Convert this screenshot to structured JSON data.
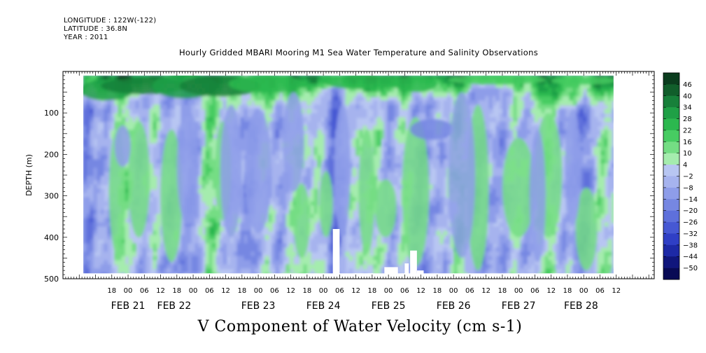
{
  "header": {
    "longitude": "LONGITUDE : 122W(-122)",
    "latitude": "LATITUDE : 36.8N",
    "year": "YEAR : 2011"
  },
  "chart_data": {
    "type": "heatmap",
    "title": "Hourly Gridded MBARI Mooring M1 Sea Water Temperature and Salinity Observations",
    "xlabel": "V Component of Water Velocity (cm s-1)",
    "ylabel": "DEPTH (m)",
    "ylim": [
      500,
      0
    ],
    "y_ticks": [
      100,
      200,
      300,
      400,
      500
    ],
    "x_range": [
      "2011-02-20T12:00",
      "2011-02-28T14:00"
    ],
    "x_hour_ticks": [
      {
        "label": "18",
        "h": 18
      },
      {
        "label": "00",
        "h": 24
      },
      {
        "label": "06",
        "h": 30
      },
      {
        "label": "12",
        "h": 36
      },
      {
        "label": "18",
        "h": 42
      },
      {
        "label": "00",
        "h": 48
      },
      {
        "label": "06",
        "h": 54
      },
      {
        "label": "12",
        "h": 60
      },
      {
        "label": "18",
        "h": 66
      },
      {
        "label": "00",
        "h": 72
      },
      {
        "label": "06",
        "h": 78
      },
      {
        "label": "12",
        "h": 84
      },
      {
        "label": "18",
        "h": 90
      },
      {
        "label": "00",
        "h": 96
      },
      {
        "label": "06",
        "h": 102
      },
      {
        "label": "12",
        "h": 108
      },
      {
        "label": "18",
        "h": 114
      },
      {
        "label": "00",
        "h": 120
      },
      {
        "label": "06",
        "h": 126
      },
      {
        "label": "12",
        "h": 132
      },
      {
        "label": "18",
        "h": 138
      },
      {
        "label": "00",
        "h": 144
      },
      {
        "label": "06",
        "h": 150
      },
      {
        "label": "12",
        "h": 156
      },
      {
        "label": "18",
        "h": 162
      },
      {
        "label": "00",
        "h": 168
      },
      {
        "label": "06",
        "h": 174
      },
      {
        "label": "12",
        "h": 180
      },
      {
        "label": "18",
        "h": 186
      },
      {
        "label": "00",
        "h": 192
      },
      {
        "label": "06",
        "h": 198
      },
      {
        "label": "12",
        "h": 204
      }
    ],
    "x_day_labels": [
      {
        "label": "FEB 21",
        "h": 24
      },
      {
        "label": "FEB 22",
        "h": 41
      },
      {
        "label": "FEB 23",
        "h": 72
      },
      {
        "label": "FEB 24",
        "h": 96
      },
      {
        "label": "FEB 25",
        "h": 120
      },
      {
        "label": "FEB 26",
        "h": 144
      },
      {
        "label": "FEB 27",
        "h": 168
      },
      {
        "label": "FEB 28",
        "h": 191
      }
    ],
    "colorbar": {
      "levels": [
        46,
        40,
        34,
        28,
        22,
        16,
        10,
        4,
        -2,
        -8,
        -14,
        -20,
        -26,
        -32,
        -38,
        -44,
        -50
      ],
      "colors": [
        "#0b3d1e",
        "#115e2b",
        "#17803a",
        "#1fa046",
        "#2cb84f",
        "#47cc62",
        "#74dd84",
        "#a5ecae",
        "#b8c6f2",
        "#a6b3ee",
        "#8e9de9",
        "#7687e2",
        "#5e70db",
        "#4658d3",
        "#2f3fc5",
        "#1d29a6",
        "#10167c",
        "#080a55"
      ]
    },
    "data_extent": {
      "start_h": 7.5,
      "end_h": 203,
      "depth_min": 10,
      "depth_max": 487
    },
    "gaps": [
      {
        "h0": 99.5,
        "h1": 102,
        "d0": 380,
        "d1": 490
      },
      {
        "h0": 118.5,
        "h1": 123.5,
        "d0": 472,
        "d1": 490
      },
      {
        "h0": 126,
        "h1": 127.5,
        "d0": 463,
        "d1": 490
      },
      {
        "h0": 128,
        "h1": 130.5,
        "d0": 432,
        "d1": 490
      },
      {
        "h0": 130.5,
        "h1": 133,
        "d0": 480,
        "d1": 490
      }
    ],
    "regions": [
      {
        "level": 3,
        "h": 16,
        "d": 45,
        "rh": 10,
        "rd": 25
      },
      {
        "level": 2,
        "h": 30,
        "d": 35,
        "rh": 16,
        "rd": 20
      },
      {
        "level": 3,
        "h": 45,
        "d": 35,
        "rh": 12,
        "rd": 30
      },
      {
        "level": 2,
        "h": 58,
        "d": 35,
        "rh": 15,
        "rd": 25
      },
      {
        "level": 4,
        "h": 75,
        "d": 30,
        "rh": 14,
        "rd": 22
      },
      {
        "level": 4,
        "h": 110,
        "d": 25,
        "rh": 14,
        "rd": 18
      },
      {
        "level": 4,
        "h": 130,
        "d": 30,
        "rh": 8,
        "rd": 20
      },
      {
        "level": 5,
        "h": 160,
        "d": 20,
        "rh": 18,
        "rd": 12
      },
      {
        "level": 5,
        "h": 192,
        "d": 22,
        "rh": 12,
        "rd": 10
      },
      {
        "level": 6,
        "h": 20,
        "d": 290,
        "rh": 3,
        "rd": 150
      },
      {
        "level": 6,
        "h": 28,
        "d": 260,
        "rh": 4,
        "rd": 140
      },
      {
        "level": 6,
        "h": 40,
        "d": 300,
        "rh": 4,
        "rd": 160
      },
      {
        "level": 6,
        "h": 88,
        "d": 360,
        "rh": 3,
        "rd": 90
      },
      {
        "level": 6,
        "h": 97,
        "d": 320,
        "rh": 2.5,
        "rd": 80
      },
      {
        "level": 6,
        "h": 119,
        "d": 330,
        "rh": 4,
        "rd": 70
      },
      {
        "level": 6,
        "h": 130,
        "d": 290,
        "rh": 5,
        "rd": 180
      },
      {
        "level": 6,
        "h": 153,
        "d": 280,
        "rh": 4,
        "rd": 200
      },
      {
        "level": 6,
        "h": 168,
        "d": 280,
        "rh": 6,
        "rd": 120
      },
      {
        "level": 6,
        "h": 179,
        "d": 250,
        "rh": 5,
        "rd": 150
      },
      {
        "level": 6,
        "h": 193,
        "d": 380,
        "rh": 4,
        "rd": 100
      },
      {
        "level": 6,
        "h": 59,
        "d": 240,
        "rh": 3,
        "rd": 120
      },
      {
        "level": 6,
        "h": 112,
        "d": 290,
        "rh": 3,
        "rd": 150
      },
      {
        "level": 10,
        "h": 62,
        "d": 240,
        "rh": 4,
        "rd": 160
      },
      {
        "level": 10,
        "h": 72,
        "d": 240,
        "rh": 5,
        "rd": 150
      },
      {
        "level": 10,
        "h": 85,
        "d": 170,
        "rh": 4,
        "rd": 120
      },
      {
        "level": 10,
        "h": 103,
        "d": 240,
        "rh": 3,
        "rd": 160
      },
      {
        "level": 11,
        "h": 136,
        "d": 140,
        "rh": 8,
        "rd": 25
      },
      {
        "level": 10,
        "h": 147,
        "d": 250,
        "rh": 5,
        "rd": 200
      },
      {
        "level": 10,
        "h": 175,
        "d": 300,
        "rh": 3,
        "rd": 160
      },
      {
        "level": 10,
        "h": 46,
        "d": 230,
        "rh": 4,
        "rd": 140
      },
      {
        "level": 10,
        "h": 22,
        "d": 180,
        "rh": 3,
        "rd": 50
      },
      {
        "level": 10,
        "h": 188,
        "d": 230,
        "rh": 3,
        "rd": 140
      }
    ]
  }
}
